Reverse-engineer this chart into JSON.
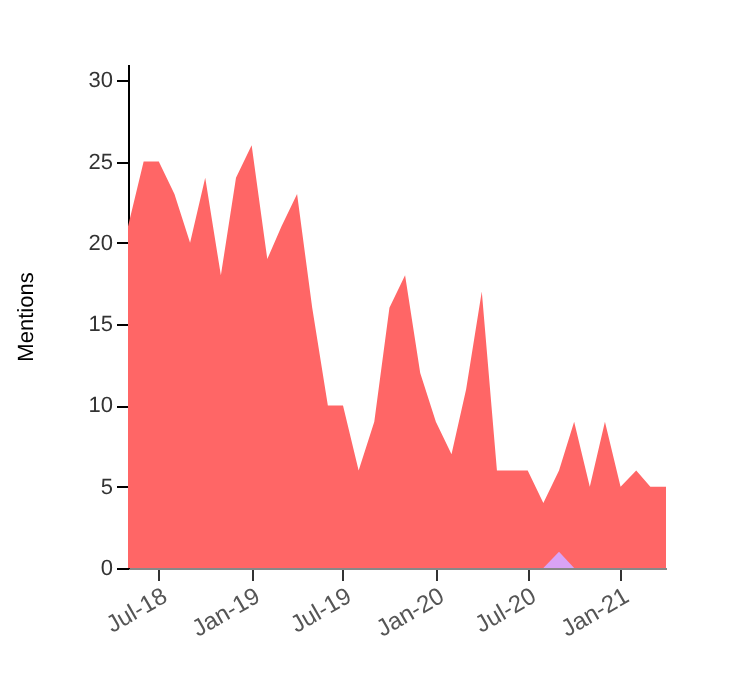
{
  "chart_data": {
    "type": "area",
    "ylabel": "Mentions",
    "x": [
      "2018-05",
      "2018-06",
      "2018-07",
      "2018-08",
      "2018-09",
      "2018-10",
      "2018-11",
      "2018-12",
      "2019-01",
      "2019-02",
      "2019-03",
      "2019-04",
      "2019-05",
      "2019-06",
      "2019-07",
      "2019-08",
      "2019-09",
      "2019-10",
      "2019-11",
      "2019-12",
      "2020-01",
      "2020-02",
      "2020-03",
      "2020-04",
      "2020-05",
      "2020-06",
      "2020-07",
      "2020-08",
      "2020-09",
      "2020-10",
      "2020-11",
      "2020-12",
      "2021-01",
      "2021-02",
      "2021-03",
      "2021-04"
    ],
    "series": [
      {
        "color": "#ff6666",
        "values": [
          21,
          25,
          25,
          23,
          20,
          24,
          18,
          24,
          26,
          19,
          21,
          23,
          16,
          10,
          10,
          6,
          9,
          16,
          18,
          12,
          9,
          7,
          11,
          17,
          6,
          6,
          6,
          4,
          6,
          9,
          5,
          9,
          5,
          6,
          5,
          5
        ]
      },
      {
        "color": "#d9a3f5",
        "values": [
          0,
          0,
          0,
          0,
          0,
          0,
          0,
          0,
          0,
          0,
          0,
          0,
          0,
          0,
          0,
          0,
          0,
          0,
          0,
          0,
          0,
          0,
          0,
          0,
          0,
          0,
          0,
          0,
          1,
          0,
          0,
          0,
          0,
          0,
          0,
          0
        ]
      }
    ],
    "xlim": [
      "2018-05",
      "2021-04"
    ],
    "xticks": [
      {
        "value": "2018-07",
        "label": "Jul-18"
      },
      {
        "value": "2019-01",
        "label": "Jan-19"
      },
      {
        "value": "2019-07",
        "label": "Jul-19"
      },
      {
        "value": "2020-01",
        "label": "Jan-20"
      },
      {
        "value": "2020-07",
        "label": "Jul-20"
      },
      {
        "value": "2021-01",
        "label": "Jan-21"
      }
    ],
    "ylim": [
      0,
      31
    ],
    "yticks": [
      0,
      5,
      10,
      15,
      20,
      25,
      30
    ],
    "grid": false
  }
}
